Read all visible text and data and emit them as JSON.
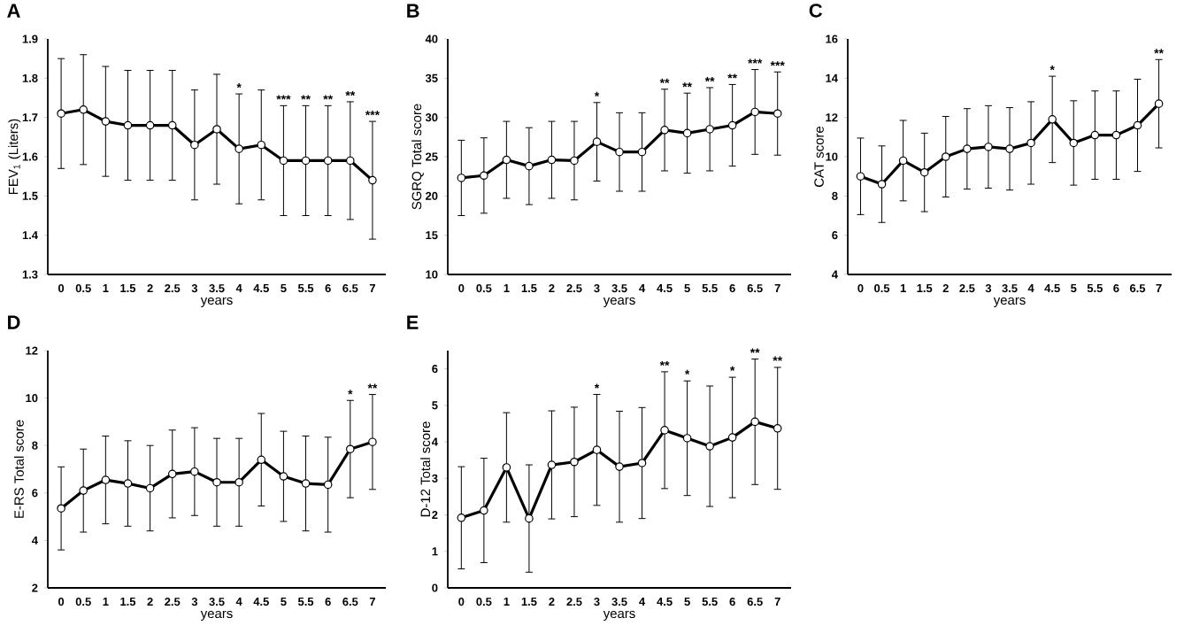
{
  "chart_data": [
    {
      "type": "line",
      "title": "A",
      "xlabel": "years",
      "ylabel": "FEV$_{1}$ (Liters)",
      "categories": [
        "0",
        "0.5",
        "1",
        "1.5",
        "2",
        "2.5",
        "3",
        "3.5",
        "4",
        "4.5",
        "5",
        "5.5",
        "6",
        "6.5",
        "7"
      ],
      "color": "#000000",
      "marker": "circle",
      "values": [
        1.71,
        1.72,
        1.69,
        1.68,
        1.68,
        1.68,
        1.63,
        1.67,
        1.62,
        1.63,
        1.59,
        1.59,
        1.59,
        1.59,
        1.54
      ],
      "errors": [
        0.14,
        0.14,
        0.14,
        0.14,
        0.14,
        0.14,
        0.14,
        0.14,
        0.14,
        0.14,
        0.14,
        0.14,
        0.14,
        0.15,
        0.15
      ],
      "ylim": [
        1.3,
        1.9
      ],
      "yticks": [
        1.3,
        1.4,
        1.5,
        1.6,
        1.7,
        1.8,
        1.9
      ],
      "annotations": [
        {
          "text": "*",
          "x": "4",
          "y": 1.76
        },
        {
          "text": "***",
          "x": "5",
          "y": 1.73
        },
        {
          "text": "**",
          "x": "5.5",
          "y": 1.73
        },
        {
          "text": "**",
          "x": "6",
          "y": 1.73
        },
        {
          "text": "**",
          "x": "6.5",
          "y": 1.74
        },
        {
          "text": "***",
          "x": "7",
          "y": 1.69
        }
      ]
    },
    {
      "type": "line",
      "title": "B",
      "xlabel": "years",
      "ylabel": "SGRQ Total score",
      "categories": [
        "0",
        "0.5",
        "1",
        "1.5",
        "2",
        "2.5",
        "3",
        "3.5",
        "4",
        "4.5",
        "5",
        "5.5",
        "6",
        "6.5",
        "7"
      ],
      "color": "#000000",
      "marker": "circle",
      "values": [
        22.3,
        22.6,
        24.6,
        23.8,
        24.6,
        24.5,
        26.9,
        25.6,
        25.6,
        28.4,
        28.0,
        28.5,
        29.0,
        30.7,
        30.5
      ],
      "errors": [
        4.8,
        4.8,
        4.9,
        4.9,
        4.9,
        5.0,
        5.0,
        5.0,
        5.0,
        5.2,
        5.1,
        5.3,
        5.2,
        5.4,
        5.3
      ],
      "ylim": [
        10,
        40
      ],
      "yticks": [
        10,
        15,
        20,
        25,
        30,
        35,
        40
      ],
      "annotations": [
        {
          "text": "*",
          "x": "3",
          "y": 31.9
        },
        {
          "text": "**",
          "x": "4.5",
          "y": 33.6
        },
        {
          "text": "**",
          "x": "5",
          "y": 33.1
        },
        {
          "text": "**",
          "x": "5.5",
          "y": 33.8
        },
        {
          "text": "**",
          "x": "6",
          "y": 34.2
        },
        {
          "text": "***",
          "x": "6.5",
          "y": 36.1
        },
        {
          "text": "***",
          "x": "7",
          "y": 35.8
        }
      ]
    },
    {
      "type": "line",
      "title": "C",
      "xlabel": "years",
      "ylabel": "CAT score",
      "categories": [
        "0",
        "0.5",
        "1",
        "1.5",
        "2",
        "2.5",
        "3",
        "3.5",
        "4",
        "4.5",
        "5",
        "5.5",
        "6",
        "6.5",
        "7"
      ],
      "color": "#000000",
      "marker": "circle",
      "values": [
        9.0,
        8.6,
        9.8,
        9.2,
        10.0,
        10.4,
        10.5,
        10.4,
        10.7,
        11.9,
        10.7,
        11.1,
        11.1,
        11.6,
        12.7
      ],
      "errors": [
        1.95,
        1.95,
        2.05,
        2.0,
        2.05,
        2.05,
        2.1,
        2.1,
        2.1,
        2.2,
        2.15,
        2.25,
        2.25,
        2.35,
        2.25
      ],
      "ylim": [
        4,
        16
      ],
      "yticks": [
        4,
        6,
        8,
        10,
        12,
        14,
        16
      ],
      "annotations": [
        {
          "text": "*",
          "x": "4.5",
          "y": 14.1
        },
        {
          "text": "**",
          "x": "7",
          "y": 14.95
        }
      ]
    },
    {
      "type": "line",
      "title": "D",
      "xlabel": "years",
      "ylabel": "E-RS Total score",
      "categories": [
        "0",
        "0.5",
        "1",
        "1.5",
        "2",
        "2.5",
        "3",
        "3.5",
        "4",
        "4.5",
        "5",
        "5.5",
        "6",
        "6.5",
        "7"
      ],
      "color": "#000000",
      "marker": "circle",
      "values": [
        5.35,
        6.1,
        6.55,
        6.4,
        6.2,
        6.8,
        6.9,
        6.45,
        6.45,
        7.4,
        6.7,
        6.4,
        6.35,
        7.85,
        8.15
      ],
      "errors": [
        1.75,
        1.75,
        1.85,
        1.8,
        1.8,
        1.85,
        1.85,
        1.85,
        1.85,
        1.95,
        1.9,
        2.0,
        2.0,
        2.05,
        2.0
      ],
      "ylim": [
        2,
        12
      ],
      "yticks": [
        2,
        4,
        6,
        8,
        10,
        12
      ],
      "annotations": [
        {
          "text": "*",
          "x": "6.5",
          "y": 9.9
        },
        {
          "text": "**",
          "x": "7",
          "y": 10.15
        }
      ]
    },
    {
      "type": "line",
      "title": "E",
      "xlabel": "years",
      "ylabel": "D-12 Total score",
      "categories": [
        "0",
        "0.5",
        "1",
        "1.5",
        "2",
        "2.5",
        "3",
        "3.5",
        "4",
        "4.5",
        "5",
        "5.5",
        "6",
        "6.5",
        "7"
      ],
      "color": "#000000",
      "marker": "circle",
      "values": [
        1.92,
        2.12,
        3.3,
        1.9,
        3.37,
        3.45,
        3.78,
        3.32,
        3.42,
        4.32,
        4.1,
        3.88,
        4.12,
        4.55,
        4.37
      ],
      "errors": [
        1.4,
        1.43,
        1.5,
        1.47,
        1.48,
        1.5,
        1.52,
        1.52,
        1.52,
        1.6,
        1.57,
        1.65,
        1.65,
        1.72,
        1.67
      ],
      "ylim": [
        0,
        6.5
      ],
      "yticks": [
        0,
        1,
        2,
        3,
        4,
        5,
        6
      ],
      "annotations": [
        {
          "text": "*",
          "x": "3",
          "y": 5.3
        },
        {
          "text": "**",
          "x": "4.5",
          "y": 5.92
        },
        {
          "text": "*",
          "x": "5",
          "y": 5.68
        },
        {
          "text": "*",
          "x": "6",
          "y": 5.78
        },
        {
          "text": "**",
          "x": "6.5",
          "y": 6.27
        },
        {
          "text": "**",
          "x": "7",
          "y": 6.05
        }
      ]
    }
  ]
}
